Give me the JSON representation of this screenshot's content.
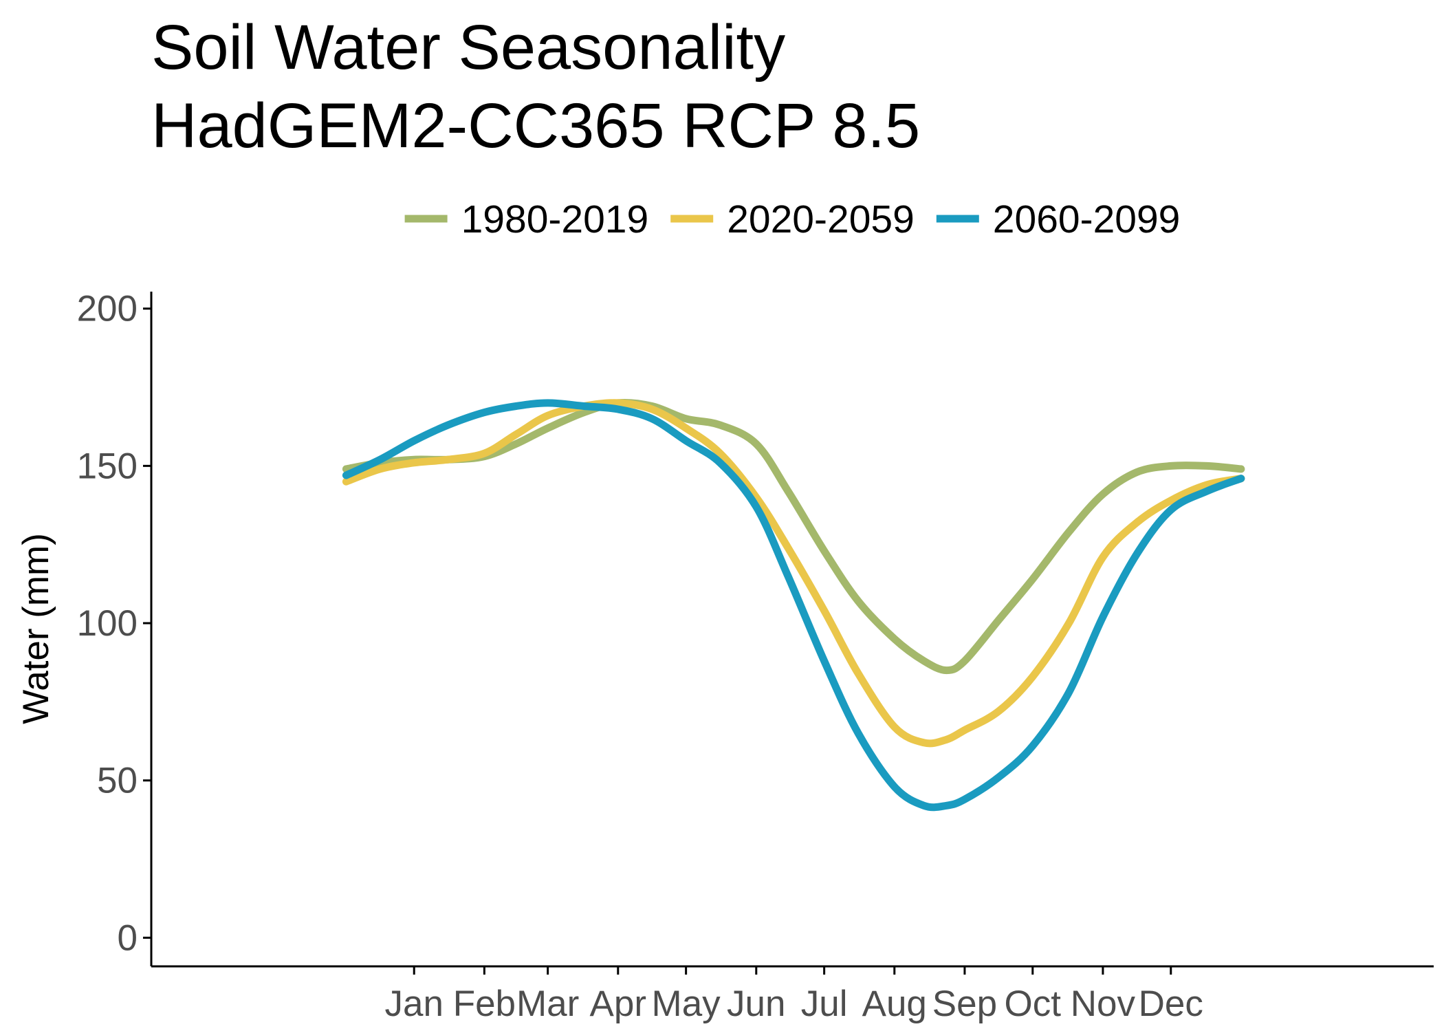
{
  "chart_data": {
    "type": "line",
    "title": "Soil Water Seasonality",
    "subtitle": "HadGEM2-CC365 RCP 8.5",
    "xlabel": "",
    "ylabel": "Water (mm)",
    "ylim": [
      0,
      200
    ],
    "yticks": [
      0,
      50,
      100,
      150,
      200
    ],
    "legend_position": "top",
    "grid": false,
    "categories": [
      "Jan",
      "Feb",
      "Mar",
      "Apr",
      "May",
      "Jun",
      "Jul",
      "Aug",
      "Sep",
      "Oct",
      "Nov",
      "Dec"
    ],
    "x_doy": [
      15,
      46,
      74,
      105,
      135,
      166,
      196,
      227,
      258,
      288,
      319,
      349
    ],
    "series": [
      {
        "name": "1980-2019",
        "color": "#a4b86b",
        "x": [
          -15,
          0,
          15,
          30,
          46,
          60,
          74,
          90,
          105,
          120,
          135,
          150,
          166,
          180,
          196,
          211,
          227,
          240,
          250,
          258,
          273,
          288,
          304,
          319,
          334,
          349,
          365,
          380
        ],
        "y": [
          149,
          151,
          152,
          152,
          153,
          157,
          162,
          167,
          170,
          169,
          165,
          163,
          157,
          142,
          123,
          107,
          95,
          88,
          85,
          88,
          101,
          114,
          129,
          141,
          148,
          150,
          150,
          149
        ]
      },
      {
        "name": "2020-2059",
        "color": "#eac64a",
        "x": [
          -15,
          0,
          15,
          30,
          46,
          60,
          74,
          90,
          105,
          120,
          135,
          150,
          166,
          180,
          196,
          211,
          227,
          240,
          250,
          258,
          273,
          288,
          304,
          319,
          334,
          349,
          365,
          380
        ],
        "y": [
          145,
          149,
          151,
          152,
          154,
          160,
          166,
          169,
          170,
          168,
          162,
          154,
          140,
          124,
          104,
          84,
          67,
          62,
          63,
          66,
          72,
          83,
          100,
          121,
          132,
          139,
          144,
          146
        ]
      },
      {
        "name": "2060-2099",
        "color": "#1a9bc0",
        "x": [
          -15,
          0,
          15,
          30,
          46,
          60,
          74,
          90,
          105,
          120,
          135,
          150,
          166,
          180,
          196,
          211,
          227,
          240,
          250,
          258,
          273,
          288,
          304,
          319,
          334,
          349,
          365,
          380
        ],
        "y": [
          147,
          152,
          158,
          163,
          167,
          169,
          170,
          169,
          168,
          165,
          158,
          151,
          137,
          115,
          88,
          65,
          48,
          42,
          42,
          44,
          51,
          61,
          78,
          102,
          122,
          136,
          142,
          146
        ]
      }
    ]
  }
}
